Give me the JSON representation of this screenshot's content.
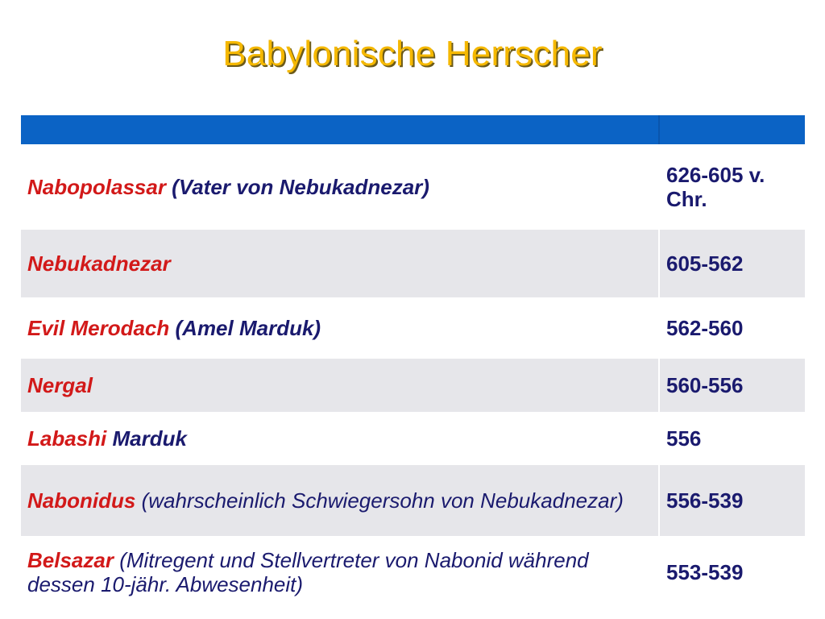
{
  "title": "Babylonische Herrscher",
  "rows": [
    {
      "name_red": "Nabopolassar",
      "name_rest": " (Vater von Nebukadnezar)",
      "years": "626-605 v. Chr."
    },
    {
      "name_red": "Nebukadnezar",
      "name_rest": "",
      "years": "605-562"
    },
    {
      "name_red": "Evil Merodach",
      "name_rest": " (Amel Marduk)",
      "years": "562-560"
    },
    {
      "name_red": "Nergal",
      "name_rest": "",
      "years": "560-556"
    },
    {
      "name_red": "Labashi",
      "name_rest": " Marduk",
      "years": "556"
    },
    {
      "name_red": "Nabonidus",
      "name_rest": " (wahrscheinlich Schwiegersohn von Nebukadnezar)",
      "years": "556-539"
    },
    {
      "name_red": "Belsazar",
      "name_rest": " (Mitregent und Stellvertreter von Nabonid während dessen 10-jähr. Abwesenheit)",
      "years": "553-539"
    }
  ],
  "colors": {
    "title": "#f5b800",
    "header": "#0b63c5",
    "band": "#e6e6ea",
    "name_highlight": "#d21919",
    "text": "#1a1a6e"
  }
}
